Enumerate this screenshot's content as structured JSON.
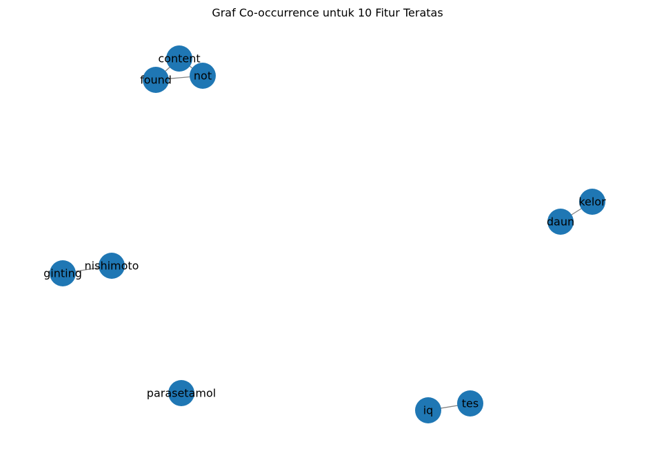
{
  "title": "Graf Co-occurrence untuk 10 Fitur Teratas",
  "colors": {
    "node": "#1f77b4",
    "edge": "#808080",
    "label": "#000000",
    "background": "#ffffff"
  },
  "graph": {
    "nodes": [
      {
        "id": "content"
      },
      {
        "id": "not"
      },
      {
        "id": "found"
      },
      {
        "id": "kelor"
      },
      {
        "id": "daun"
      },
      {
        "id": "nishimoto"
      },
      {
        "id": "ginting"
      },
      {
        "id": "parasetamol"
      },
      {
        "id": "tes"
      },
      {
        "id": "iq"
      }
    ],
    "edges": [
      {
        "source": "content",
        "target": "not"
      },
      {
        "source": "content",
        "target": "found"
      },
      {
        "source": "not",
        "target": "found"
      },
      {
        "source": "kelor",
        "target": "daun"
      },
      {
        "source": "nishimoto",
        "target": "ginting"
      },
      {
        "source": "tes",
        "target": "iq"
      }
    ]
  }
}
